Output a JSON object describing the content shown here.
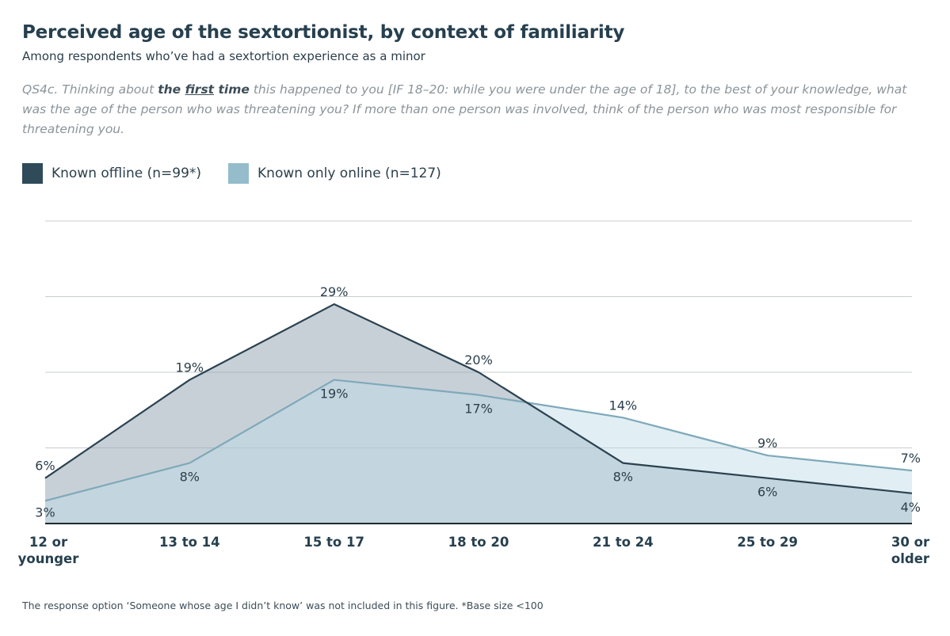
{
  "header": {
    "title": "Perceived age of the sextortionist, by context of familiarity",
    "subtitle": "Among respondents who’ve had a sextortion experience as a minor"
  },
  "question": {
    "prefix": "QS4c. Thinking about",
    "bold_1": "the",
    "bold_underlined": "first",
    "bold_2": "time",
    "rest": "this happened to you [IF 18–20: while you were under the age of 18], to the best of your knowledge, what was the age of the person who was threatening you? If more than one person was involved, think of the person who was most responsible for threatening you."
  },
  "legend": {
    "items": [
      {
        "label": "Known offline (n=99*)",
        "color": "#2f4a59"
      },
      {
        "label": "Known only online (n=127)",
        "color": "#94bccb"
      }
    ]
  },
  "chart_data": {
    "type": "area",
    "title": "Perceived age of the sextortionist, by context of familiarity",
    "categories": [
      "12 or younger",
      "13 to 14",
      "15 to 17",
      "18 to 20",
      "21 to 24",
      "25 to 29",
      "30 or older"
    ],
    "category_lines": [
      [
        "12 or",
        "younger"
      ],
      [
        "13 to 14"
      ],
      [
        "15 to 17"
      ],
      [
        "18 to 20"
      ],
      [
        "21 to 24"
      ],
      [
        "25 to 29"
      ],
      [
        "30 or",
        "older"
      ]
    ],
    "series": [
      {
        "name": "Known offline (n=99*)",
        "values": [
          6,
          19,
          29,
          20,
          8,
          6,
          4
        ],
        "labels": [
          "6%",
          "19%",
          "29%",
          "20%",
          "8%",
          "6%",
          "4%"
        ],
        "line_color": "#2b4250",
        "fill_color": "#9aa9b6",
        "fill_opacity": 0.55
      },
      {
        "name": "Known only online (n=127)",
        "values": [
          3,
          8,
          19,
          17,
          14,
          9,
          7
        ],
        "labels": [
          "3%",
          "8%",
          "19%",
          "17%",
          "14%",
          "9%",
          "7%"
        ],
        "line_color": "#7ea9ba",
        "fill_color": "#bcdbe6",
        "fill_opacity": 0.45
      }
    ],
    "ylim": [
      0,
      40
    ],
    "gridlines": [
      10,
      20,
      30,
      40
    ],
    "xlabel": "",
    "ylabel": "",
    "legend_position": "top-left"
  },
  "footnote": "The response option ‘Someone whose age I didn’t know’ was not included in this figure. *Base size <100"
}
